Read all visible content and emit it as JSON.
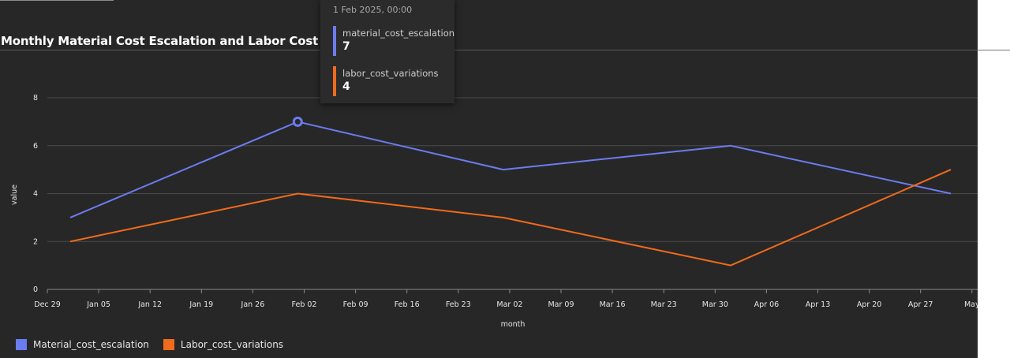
{
  "title": "Monthly Material Cost Escalation and Labor Cost Variations",
  "tooltip": {
    "header": "1 Feb 2025, 00:00",
    "rows": [
      {
        "name": "material_cost_escalation",
        "value": "7",
        "color": "#6b7cf0"
      },
      {
        "name": "labor_cost_variations",
        "value": "4",
        "color": "#f26a1b"
      }
    ]
  },
  "legend": [
    {
      "label": "Material_cost_escalation",
      "color": "#6b7cf0"
    },
    {
      "label": "Labor_cost_variations",
      "color": "#f26a1b"
    }
  ],
  "chart_data": {
    "type": "line",
    "title": "Monthly Material Cost Escalation and Labor Cost Variations",
    "xlabel": "month",
    "ylabel": "value",
    "x": [
      "2025-01-01",
      "2025-02-01",
      "2025-03-01",
      "2025-04-01",
      "2025-05-01"
    ],
    "xlim": [
      "2024-12-29",
      "2025-05-04"
    ],
    "x_tick_labels": [
      "Dec 29",
      "Jan 05",
      "Jan 12",
      "Jan 19",
      "Jan 26",
      "Feb 02",
      "Feb 09",
      "Feb 16",
      "Feb 23",
      "Mar 02",
      "Mar 09",
      "Mar 16",
      "Mar 23",
      "Mar 30",
      "Apr 06",
      "Apr 13",
      "Apr 20",
      "Apr 27",
      "May"
    ],
    "y_ticks": [
      0,
      2,
      4,
      6,
      8
    ],
    "ylim": [
      0,
      8
    ],
    "grid": true,
    "legend_position": "bottom-left",
    "highlighted_point": {
      "series": 0,
      "index": 1
    },
    "series": [
      {
        "name": "Material_cost_escalation",
        "color": "#6b7cf0",
        "values": [
          3,
          7,
          5,
          6,
          4
        ]
      },
      {
        "name": "Labor_cost_variations",
        "color": "#f26a1b",
        "values": [
          2,
          4,
          3,
          1,
          5
        ]
      }
    ]
  }
}
